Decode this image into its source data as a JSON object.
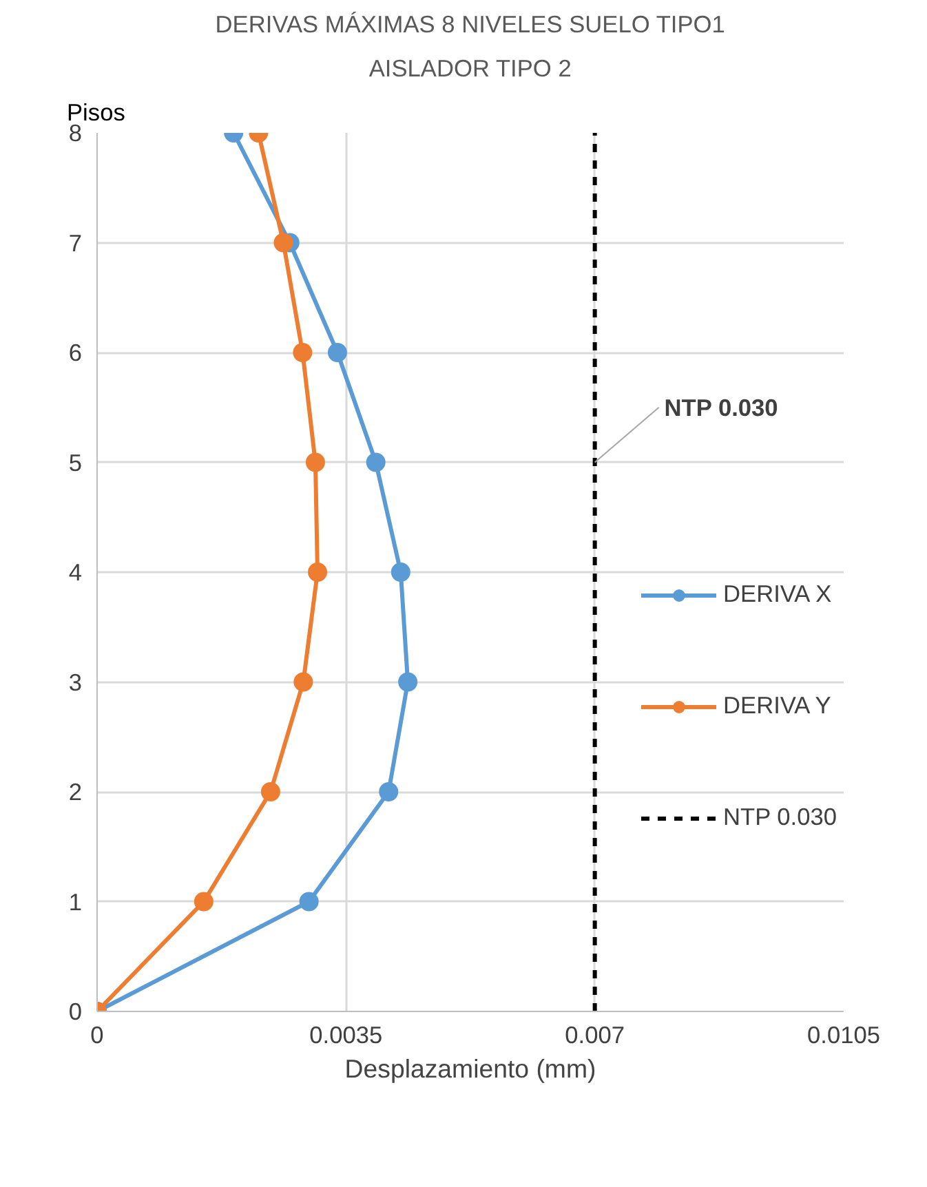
{
  "chart_data": {
    "type": "line",
    "title": "DERIVAS MÁXIMAS 8 NIVELES SUELO TIPO1",
    "subtitle": "AISLADOR TIPO 2",
    "xlabel": "Desplazamiento (mm)",
    "ylabel": "Pisos",
    "series": [
      {
        "name": "DERIVA X",
        "color": "#5b9bd5",
        "x": [
          0,
          0.00298,
          0.0041,
          0.00437,
          0.00427,
          0.00392,
          0.00338,
          0.00271,
          0.00192
        ],
        "values": [
          0,
          1,
          2,
          3,
          4,
          5,
          6,
          7,
          8
        ],
        "marker": "circle",
        "line_style": "solid"
      },
      {
        "name": "DERIVA Y",
        "color": "#ed7d31",
        "x": [
          0,
          0.0015,
          0.00244,
          0.0029,
          0.0031,
          0.00307,
          0.00289,
          0.00262,
          0.00227
        ],
        "values": [
          0,
          1,
          2,
          3,
          4,
          5,
          6,
          7,
          8
        ],
        "marker": "circle",
        "line_style": "solid"
      },
      {
        "name": "NTP 0.030",
        "color": "#000000",
        "x": [
          0.007,
          0.007
        ],
        "values": [
          0,
          8
        ],
        "marker": "none",
        "line_style": "dashed"
      }
    ],
    "annotations": [
      {
        "text": "NTP 0.030",
        "x": 0.007,
        "y": 5
      }
    ],
    "xlim": [
      0,
      0.0105
    ],
    "ylim": [
      0,
      8
    ],
    "xticks": [
      0,
      0.0035,
      0.007,
      0.0105
    ],
    "yticks": [
      0,
      1,
      2,
      3,
      4,
      5,
      6,
      7,
      8
    ],
    "grid": true,
    "legend": "right"
  }
}
